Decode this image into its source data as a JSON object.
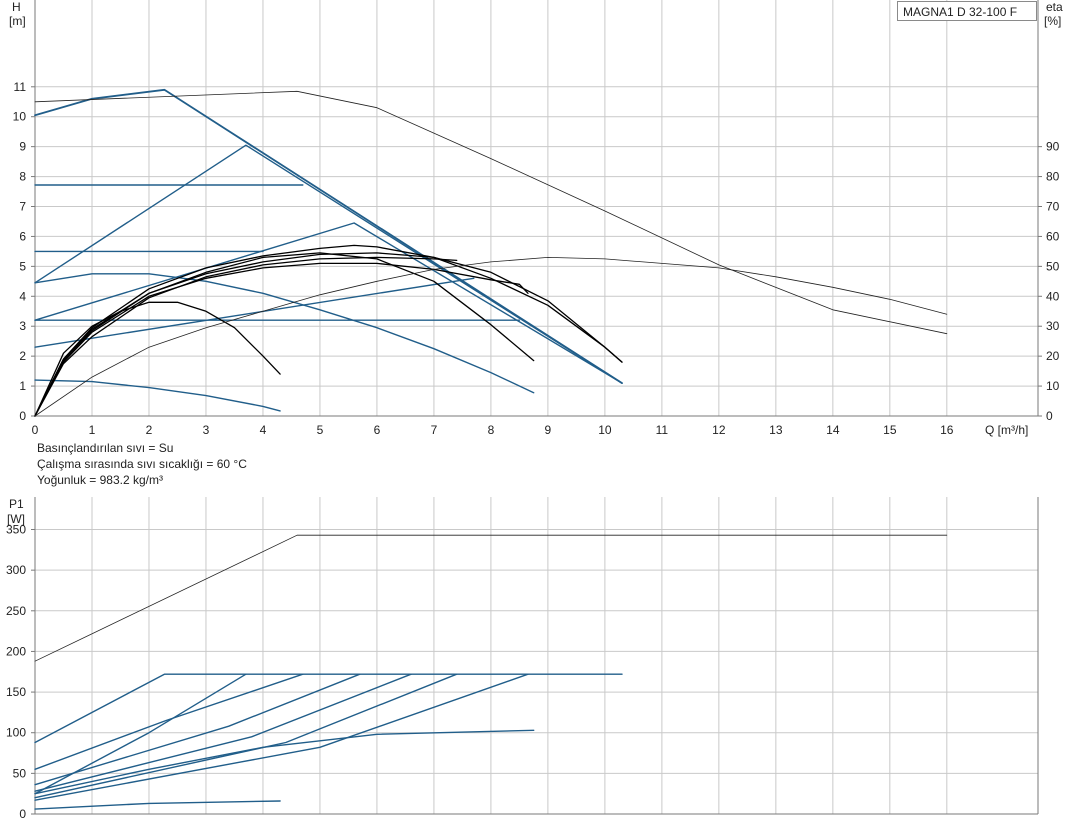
{
  "model_label": "MAGNA1 D 32-100 F",
  "notes": [
    "Basınçlandırılan sıvı = Su",
    "Çalışma sırasında sıvı sıcaklığı = 60 °C",
    "Yoğunluk = 983.2 kg/m³"
  ],
  "colors": {
    "grid": "#c9c9c9",
    "axis": "#7a7a7a",
    "pump": "#215e8a",
    "system": "#000000",
    "eta": "#222222"
  },
  "chart_data": [
    {
      "type": "line",
      "id": "head",
      "ylabel_lines": [
        "H",
        "[m]"
      ],
      "y2label_lines": [
        "eta",
        "[%]"
      ],
      "xlabel": "Q [m³/h]",
      "xlim": [
        0,
        17.6
      ],
      "ylim": [
        0,
        13.9
      ],
      "x_ticks": [
        0,
        1,
        2,
        3,
        4,
        5,
        6,
        7,
        8,
        9,
        10,
        11,
        12,
        13,
        14,
        15,
        16
      ],
      "y_ticks": [
        0,
        1,
        2,
        3,
        4,
        5,
        6,
        7,
        8,
        9,
        10,
        11
      ],
      "y2_ticks": [
        0,
        10,
        20,
        30,
        40,
        50,
        60,
        70,
        80,
        90
      ],
      "y2lim": [
        0,
        139
      ],
      "grid": true,
      "series": [
        {
          "group": "pump",
          "w": 1.8,
          "x": [
            0,
            1,
            2.27,
            10.3
          ],
          "y": [
            10.05,
            10.6,
            10.9,
            1.1
          ]
        },
        {
          "group": "pump",
          "w": 1.4,
          "x": [
            0,
            3.7,
            10.3
          ],
          "y": [
            4.45,
            9.05,
            1.1
          ]
        },
        {
          "group": "pump",
          "w": 1.4,
          "x": [
            0,
            4.7
          ],
          "y": [
            7.72,
            7.72
          ]
        },
        {
          "group": "pump",
          "w": 1.4,
          "x": [
            0,
            5.6,
            10.3
          ],
          "y": [
            3.2,
            6.45,
            1.1
          ]
        },
        {
          "group": "pump",
          "w": 1.4,
          "x": [
            0,
            4.0
          ],
          "y": [
            5.5,
            5.5
          ]
        },
        {
          "group": "pump",
          "w": 1.4,
          "x": [
            0,
            7.7
          ],
          "y": [
            2.3,
            4.6
          ]
        },
        {
          "group": "pump",
          "w": 1.4,
          "x": [
            0,
            8.5
          ],
          "y": [
            3.2,
            3.2
          ]
        },
        {
          "group": "pump",
          "w": 1.4,
          "x": [
            0,
            1,
            2,
            3,
            4,
            5,
            6,
            7,
            8,
            8.75
          ],
          "y": [
            4.45,
            4.75,
            4.75,
            4.5,
            4.1,
            3.55,
            2.95,
            2.25,
            1.45,
            0.78
          ]
        },
        {
          "group": "pump",
          "w": 1.4,
          "x": [
            0,
            1,
            2,
            3,
            4,
            4.3
          ],
          "y": [
            1.2,
            1.15,
            0.95,
            0.68,
            0.32,
            0.17
          ]
        },
        {
          "group": "system",
          "w": 1.3,
          "x": [
            0,
            0.5,
            1,
            1.5,
            2,
            2.5,
            3,
            3.5,
            4,
            4.3
          ],
          "y": [
            0,
            2.1,
            3.0,
            3.5,
            3.8,
            3.8,
            3.5,
            2.95,
            2.0,
            1.4
          ]
        },
        {
          "group": "system",
          "w": 1.3,
          "x": [
            0,
            0.5,
            1,
            2,
            3,
            4,
            5,
            6,
            7,
            8,
            8.75
          ],
          "y": [
            0,
            1.9,
            2.9,
            4.1,
            4.8,
            5.3,
            5.45,
            5.25,
            4.5,
            3.05,
            1.85
          ]
        },
        {
          "group": "system",
          "w": 1.3,
          "x": [
            0,
            0.5,
            1,
            2,
            3,
            4,
            5,
            6,
            7,
            8,
            8.5,
            8.65
          ],
          "y": [
            0,
            1.8,
            2.8,
            4.0,
            4.6,
            4.95,
            5.1,
            5.1,
            4.9,
            4.55,
            4.4,
            4.1
          ]
        },
        {
          "group": "system",
          "w": 1.3,
          "x": [
            0,
            0.5,
            1,
            2,
            3,
            4,
            5,
            6,
            7,
            7.4
          ],
          "y": [
            0,
            1.75,
            2.65,
            3.95,
            4.65,
            5.05,
            5.25,
            5.3,
            5.25,
            5.2
          ]
        },
        {
          "group": "system",
          "w": 1.3,
          "x": [
            0,
            0.5,
            1,
            2,
            3,
            4,
            5,
            6,
            7,
            8,
            9,
            10,
            10.3
          ],
          "y": [
            0,
            1.85,
            2.85,
            4.1,
            4.75,
            5.15,
            5.4,
            5.45,
            5.3,
            4.8,
            3.85,
            2.3,
            1.8
          ]
        },
        {
          "group": "system",
          "w": 1.3,
          "x": [
            0,
            0.5,
            1,
            2,
            3,
            4,
            5,
            5.6,
            6,
            7,
            8,
            9,
            10,
            10.3
          ],
          "y": [
            0,
            1.9,
            2.95,
            4.25,
            4.95,
            5.35,
            5.6,
            5.7,
            5.65,
            5.3,
            4.6,
            3.7,
            2.3,
            1.8
          ]
        },
        {
          "group": "eta",
          "w": 0.8,
          "x": [
            0,
            4.6,
            6,
            8,
            10,
            12,
            14,
            16
          ],
          "y": [
            10.5,
            10.85,
            10.3,
            8.6,
            6.85,
            5.05,
            3.55,
            2.75
          ]
        },
        {
          "group": "eta",
          "w": 0.8,
          "x": [
            0,
            1,
            2,
            3,
            4,
            5,
            6,
            7,
            8,
            9,
            10,
            11,
            12,
            13,
            14,
            15,
            16
          ],
          "y": [
            0,
            1.3,
            2.3,
            2.95,
            3.5,
            4.05,
            4.5,
            4.9,
            5.15,
            5.3,
            5.25,
            5.1,
            4.95,
            4.65,
            4.3,
            3.9,
            3.4
          ]
        }
      ]
    },
    {
      "type": "line",
      "id": "power",
      "ylabel_lines": [
        "P1",
        "[W]"
      ],
      "xlim": [
        0,
        17.6
      ],
      "ylim": [
        0,
        390
      ],
      "x_ticks": [
        0,
        1,
        2,
        3,
        4,
        5,
        6,
        7,
        8,
        9,
        10,
        11,
        12,
        13,
        14,
        15,
        16
      ],
      "y_ticks": [
        0,
        50,
        100,
        150,
        200,
        250,
        300,
        350
      ],
      "grid": true,
      "series": [
        {
          "group": "eta",
          "w": 0.8,
          "x": [
            0,
            4.6,
            16
          ],
          "y": [
            188,
            343,
            343
          ]
        },
        {
          "group": "pump",
          "w": 1.4,
          "x": [
            0,
            2.27,
            10.3
          ],
          "y": [
            88,
            172,
            172
          ]
        },
        {
          "group": "pump",
          "w": 1.4,
          "x": [
            0,
            2.0,
            3.7
          ],
          "y": [
            25,
            100,
            172
          ]
        },
        {
          "group": "pump",
          "w": 1.4,
          "x": [
            0,
            2.3,
            4.7
          ],
          "y": [
            55,
            115,
            172
          ]
        },
        {
          "group": "pump",
          "w": 1.4,
          "x": [
            0,
            3.4,
            5.7
          ],
          "y": [
            36,
            108,
            172
          ]
        },
        {
          "group": "pump",
          "w": 1.4,
          "x": [
            0,
            3.8,
            6.6
          ],
          "y": [
            28,
            95,
            172
          ]
        },
        {
          "group": "pump",
          "w": 1.4,
          "x": [
            0,
            4.4,
            7.4
          ],
          "y": [
            20,
            88,
            172
          ]
        },
        {
          "group": "pump",
          "w": 1.4,
          "x": [
            0,
            5.0,
            8.65
          ],
          "y": [
            17,
            82,
            172
          ]
        },
        {
          "group": "pump",
          "w": 1.4,
          "x": [
            0,
            2,
            4,
            6,
            8.75
          ],
          "y": [
            25,
            55,
            82,
            98,
            103
          ]
        },
        {
          "group": "pump",
          "w": 1.4,
          "x": [
            0,
            2,
            4.3
          ],
          "y": [
            6,
            13,
            16
          ]
        }
      ]
    }
  ]
}
